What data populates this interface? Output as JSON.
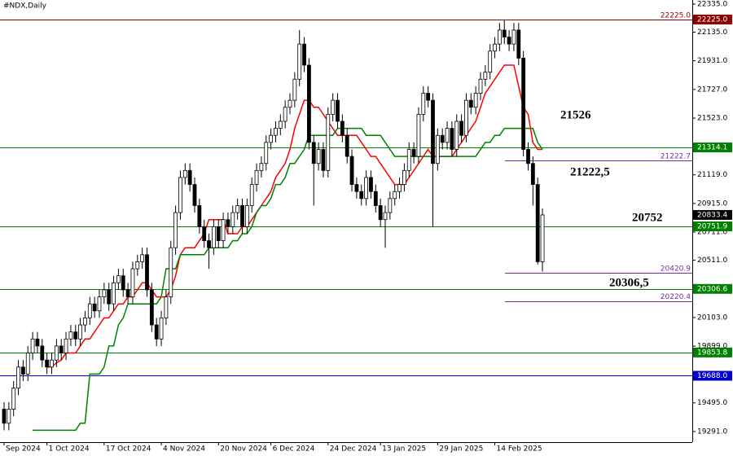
{
  "chart_data": {
    "type": "candlestick",
    "title": "#NDX,Daily",
    "categories": [
      "Sep 2024",
      null,
      null,
      null,
      null,
      null,
      null,
      null,
      null,
      "1 Oct 2024",
      null,
      null,
      null,
      null,
      null,
      null,
      null,
      null,
      null,
      null,
      null,
      "17 Oct 2024",
      null,
      null,
      null,
      null,
      null,
      null,
      null,
      null,
      null,
      null,
      null,
      "4 Nov 2024",
      null,
      null,
      null,
      null,
      null,
      null,
      null,
      null,
      null,
      null,
      null,
      "20 Nov 2024",
      null,
      null,
      null,
      null,
      null,
      null,
      null,
      null,
      null,
      null,
      "6 Dec 2024",
      null,
      null,
      null,
      null,
      null,
      null,
      null,
      null,
      null,
      null,
      null,
      "24 Dec 2024",
      null,
      null,
      null,
      null,
      null,
      null,
      null,
      null,
      null,
      null,
      "13 Jan 2025",
      null,
      null,
      null,
      null,
      null,
      null,
      null,
      null,
      null,
      null,
      null,
      "29 Jan 2025",
      null,
      null,
      null,
      null,
      null,
      null,
      null,
      null,
      null,
      null,
      null,
      "14 Feb 2025",
      null,
      null,
      null,
      null,
      null,
      null,
      null,
      null,
      null,
      null
    ],
    "open": [
      19450,
      19350,
      19450,
      19600,
      19750,
      19700,
      19850,
      19950,
      19900,
      19800,
      19750,
      19800,
      19900,
      19850,
      19950,
      20000,
      19950,
      20050,
      20100,
      20200,
      20150,
      20250,
      20300,
      20200,
      20350,
      20400,
      20300,
      20250,
      20450,
      20500,
      20550,
      20300,
      20050,
      19950,
      20100,
      20250,
      20600,
      20850,
      21100,
      21150,
      21050,
      20900,
      20750,
      20650,
      20600,
      20750,
      20650,
      20800,
      20750,
      20850,
      20900,
      20750,
      20900,
      21050,
      21150,
      21200,
      21350,
      21400,
      21450,
      21500,
      21600,
      21650,
      21800,
      22050,
      21900,
      21350,
      21200,
      21300,
      21150,
      21550,
      21650,
      21500,
      21400,
      21250,
      21050,
      21000,
      20950,
      21100,
      21000,
      20900,
      20800,
      20850,
      20950,
      21000,
      21050,
      21150,
      21300,
      21250,
      21550,
      21700,
      21650,
      21200,
      21400,
      21350,
      21450,
      21300,
      21500,
      21400,
      21650,
      21600,
      21700,
      21800,
      21850,
      22000,
      22050,
      22150,
      22100,
      22050,
      22150,
      21950,
      21300,
      21200,
      21050,
      20500
    ],
    "high": [
      19500,
      19500,
      19650,
      19800,
      19800,
      19900,
      20000,
      20000,
      19950,
      19850,
      19850,
      19950,
      19950,
      20000,
      20050,
      20050,
      20100,
      20150,
      20250,
      20250,
      20300,
      20350,
      20350,
      20400,
      20450,
      20450,
      20350,
      20500,
      20550,
      20600,
      20600,
      20350,
      20100,
      20150,
      20300,
      20650,
      20900,
      21150,
      21200,
      21200,
      21100,
      20950,
      20800,
      20700,
      20800,
      20800,
      20850,
      20850,
      20900,
      20950,
      20950,
      20950,
      21100,
      21200,
      21250,
      21400,
      21450,
      21500,
      21550,
      21650,
      21700,
      21850,
      22150,
      22100,
      21950,
      21400,
      21350,
      21350,
      21600,
      21700,
      21700,
      21550,
      21450,
      21300,
      21100,
      21050,
      21150,
      21150,
      21050,
      20950,
      20900,
      21000,
      21050,
      21100,
      21200,
      21350,
      21350,
      21600,
      21750,
      21750,
      21700,
      21450,
      21450,
      21500,
      21500,
      21550,
      21550,
      21700,
      21700,
      21750,
      21850,
      21900,
      22050,
      22100,
      22200,
      22225,
      22150,
      22200,
      22200,
      22000,
      21350,
      21250,
      21100,
      20880
    ],
    "low": [
      19300,
      19300,
      19400,
      19550,
      19650,
      19650,
      19800,
      19850,
      19750,
      19700,
      19700,
      19750,
      19800,
      19800,
      19900,
      19900,
      19900,
      20000,
      20050,
      20100,
      20100,
      20200,
      20150,
      20150,
      20300,
      20250,
      20200,
      20200,
      20400,
      20450,
      20250,
      20000,
      19900,
      19900,
      20050,
      20200,
      20550,
      20800,
      21050,
      21000,
      20850,
      20700,
      20600,
      20450,
      20550,
      20600,
      20600,
      20700,
      20700,
      20800,
      20700,
      20700,
      20850,
      21000,
      21100,
      21150,
      21300,
      21350,
      21400,
      21450,
      21550,
      21600,
      21750,
      21850,
      21300,
      20900,
      21150,
      21100,
      21100,
      21500,
      21450,
      21350,
      21200,
      21000,
      20950,
      20900,
      20900,
      20950,
      20850,
      20750,
      20600,
      20800,
      20900,
      20950,
      21000,
      21100,
      21200,
      21200,
      21500,
      21600,
      20750,
      21150,
      21300,
      21300,
      21250,
      21250,
      21350,
      21350,
      21550,
      21550,
      21650,
      21750,
      21800,
      21950,
      22000,
      22050,
      22000,
      22000,
      21900,
      21250,
      21150,
      20900,
      20480,
      20430
    ],
    "close": [
      19350,
      19450,
      19600,
      19750,
      19700,
      19850,
      19950,
      19900,
      19800,
      19750,
      19800,
      19900,
      19850,
      19950,
      20000,
      19950,
      20050,
      20100,
      20200,
      20150,
      20250,
      20300,
      20200,
      20350,
      20400,
      20300,
      20250,
      20450,
      20500,
      20550,
      20300,
      20050,
      19950,
      20100,
      20250,
      20600,
      20850,
      21100,
      21150,
      21050,
      20900,
      20750,
      20650,
      20600,
      20750,
      20650,
      20800,
      20750,
      20850,
      20900,
      20750,
      20900,
      21050,
      21150,
      21200,
      21350,
      21400,
      21450,
      21500,
      21600,
      21650,
      21800,
      22050,
      21900,
      21350,
      21200,
      21300,
      21150,
      21550,
      21650,
      21500,
      21400,
      21250,
      21050,
      21000,
      20950,
      21100,
      21000,
      20900,
      20800,
      20850,
      20950,
      21000,
      21050,
      21150,
      21300,
      21250,
      21550,
      21700,
      21650,
      21200,
      21400,
      21350,
      21450,
      21300,
      21500,
      21400,
      21650,
      21600,
      21700,
      21800,
      21850,
      22000,
      22050,
      22150,
      22100,
      22050,
      22150,
      21950,
      21300,
      21200,
      21050,
      20500,
      20833.4
    ],
    "up_color": "#ffffff",
    "down_color": "#000000",
    "lines": [
      {
        "color": "#ff0000",
        "values": [
          null,
          null,
          null,
          null,
          null,
          null,
          null,
          null,
          null,
          19750,
          19750,
          19780,
          19800,
          19850,
          19850,
          19850,
          19900,
          19950,
          19950,
          20000,
          20050,
          20100,
          20100,
          20150,
          20200,
          20200,
          20250,
          20250,
          20300,
          20350,
          20350,
          20300,
          20250,
          20250,
          20250,
          20300,
          20400,
          20550,
          20600,
          20600,
          20600,
          20650,
          20700,
          20800,
          20800,
          20800,
          20800,
          20700,
          20700,
          20700,
          20750,
          20750,
          20800,
          20850,
          20900,
          20950,
          21000,
          21100,
          21150,
          21200,
          21300,
          21450,
          21550,
          21650,
          21650,
          21600,
          21600,
          21550,
          21500,
          21450,
          21400,
          21400,
          21400,
          21400,
          21400,
          21350,
          21300,
          21250,
          21250,
          21200,
          21150,
          21100,
          21050,
          21050,
          21050,
          21100,
          21150,
          21200,
          21250,
          21300,
          21250,
          21250,
          21250,
          21250,
          21250,
          21300,
          21350,
          21400,
          21450,
          21500,
          21600,
          21700,
          21750,
          21800,
          21850,
          21900,
          21900,
          21900,
          21750,
          21600,
          21550,
          21350,
          21300,
          21300
        ]
      },
      {
        "color": "#008000",
        "values": [
          null,
          null,
          null,
          null,
          null,
          null,
          19300,
          19300,
          19300,
          19300,
          19300,
          19300,
          19300,
          19300,
          19300,
          19300,
          19350,
          19350,
          19700,
          19700,
          19700,
          19750,
          19900,
          19900,
          20050,
          20100,
          20200,
          20200,
          20200,
          20200,
          20200,
          20200,
          20200,
          20250,
          20450,
          20450,
          20450,
          20550,
          20550,
          20550,
          20550,
          20550,
          20550,
          20600,
          20600,
          20600,
          20600,
          20600,
          20650,
          20650,
          20700,
          20700,
          20750,
          20850,
          20900,
          20900,
          20950,
          21050,
          21050,
          21100,
          21200,
          21200,
          21250,
          21300,
          21400,
          21400,
          21400,
          21400,
          21400,
          21400,
          21450,
          21450,
          21450,
          21450,
          21450,
          21450,
          21400,
          21400,
          21400,
          21400,
          21350,
          21300,
          21250,
          21250,
          21250,
          21250,
          21250,
          21250,
          21250,
          21250,
          21250,
          21250,
          21250,
          21250,
          21250,
          21250,
          21250,
          21250,
          21250,
          21250,
          21300,
          21350,
          21350,
          21400,
          21400,
          21450,
          21450,
          21450,
          21450,
          21450,
          21450,
          21450,
          21350,
          21300
        ]
      }
    ],
    "ylim": [
      19221,
      22364
    ],
    "yticks": [
      {
        "value": 22335,
        "label": "22335.0"
      },
      {
        "value": 22135,
        "label": "22135.0"
      },
      {
        "value": 21931,
        "label": "21931.0"
      },
      {
        "value": 21727,
        "label": "21727.0"
      },
      {
        "value": 21523,
        "label": "21523.0"
      },
      {
        "value": 21119,
        "label": "21119.0"
      },
      {
        "value": 20915,
        "label": "20915.0"
      },
      {
        "value": 20711,
        "label": "20711.0"
      },
      {
        "value": 20511,
        "label": "20511.0"
      },
      {
        "value": 20103,
        "label": "20103.0"
      },
      {
        "value": 19899,
        "label": "19899.0"
      },
      {
        "value": 19495,
        "label": "19495.0"
      },
      {
        "value": 19291,
        "label": "19291.0"
      }
    ],
    "levels": [
      {
        "value": 22225,
        "label": "22225.0",
        "line_label": "22225.0",
        "color": "#8b0000",
        "line": "full"
      },
      {
        "value": 21314.1,
        "label": "21314.1",
        "color": "#008000",
        "line": "full"
      },
      {
        "value": 21222.7,
        "line_label": "21222.7",
        "color": "#7030a0",
        "line": "short"
      },
      {
        "value": 20833.4,
        "label": "20833.4",
        "color": "#000000",
        "line": "none"
      },
      {
        "value": 20751.9,
        "label": "20751.9",
        "color": "#008000",
        "line": "full"
      },
      {
        "value": 20420.9,
        "line_label": "20420.9",
        "color": "#7030a0",
        "line": "short"
      },
      {
        "value": 20306.6,
        "label": "20306.6",
        "color": "#008000",
        "line": "full"
      },
      {
        "value": 20220.4,
        "line_label": "20220.4",
        "color": "#7030a0",
        "line": "short"
      },
      {
        "value": 19853.8,
        "label": "19853.8",
        "color": "#008000",
        "line": "full"
      },
      {
        "value": 19688,
        "label": "19688.0",
        "color": "#0000cd",
        "line": "full"
      }
    ],
    "annotations": [
      {
        "text": "21526"
      },
      {
        "text": "21222,5"
      },
      {
        "text": "20752"
      },
      {
        "text": "20306,5"
      }
    ]
  }
}
